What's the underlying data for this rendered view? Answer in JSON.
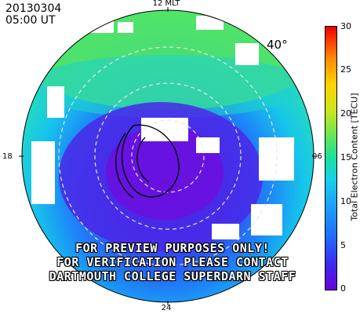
{
  "header": {
    "date": "20130304",
    "time": "05:00 UT"
  },
  "mlt_labels": {
    "top": "12 MLT",
    "bottom": "24",
    "left": "18",
    "right": "06"
  },
  "latitude_label": "40°",
  "watermark": [
    "FOR PREVIEW PURPOSES ONLY!",
    "FOR VERIFICATION PLEASE CONTACT",
    "DARTMOUTH COLLEGE SUPERDARN STAFF"
  ],
  "colorbar": {
    "title": "Total Electron Content [TECU]",
    "ticks": [
      "30",
      "25",
      "20",
      "15",
      "10",
      "5",
      "0"
    ],
    "min": 0,
    "max": 30
  },
  "colors": {
    "low": "#5a1ee0",
    "mid": "#14d2e8",
    "high": "#3de06a",
    "background": "#ffffff"
  }
}
